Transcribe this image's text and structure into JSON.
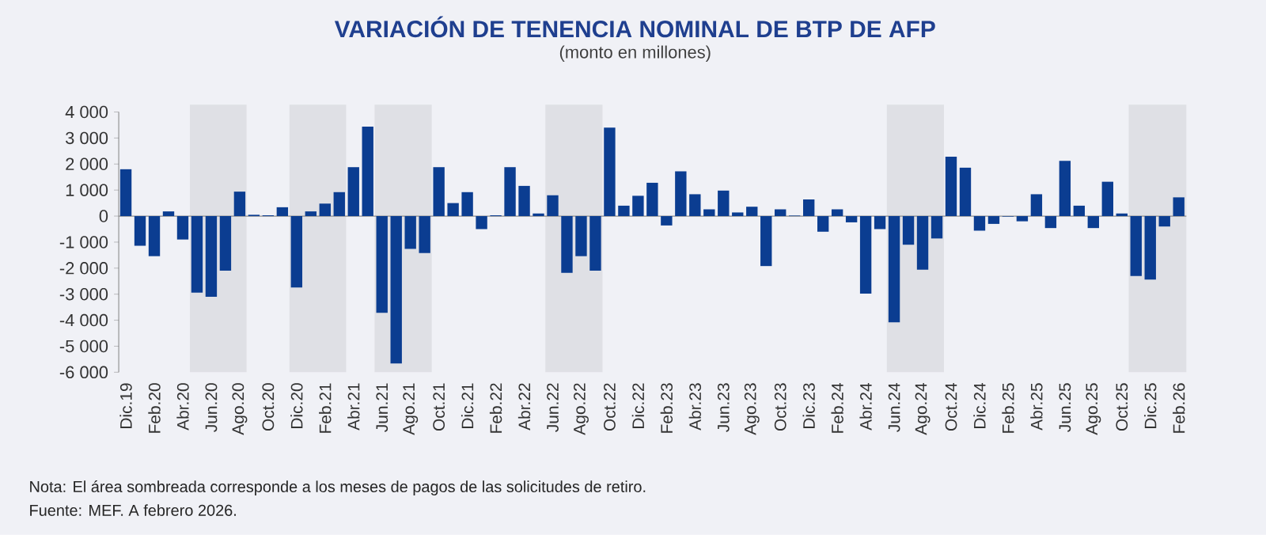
{
  "chart_data": {
    "type": "bar",
    "title": "VARIACIÓN DE TENENCIA NOMINAL DE BTP DE AFP",
    "subtitle": "(monto en millones)",
    "x": [
      "2019-12",
      "2020-01",
      "2020-02",
      "2020-03",
      "2020-04",
      "2020-05",
      "2020-06",
      "2020-07",
      "2020-08",
      "2020-09",
      "2020-10",
      "2020-11",
      "2020-12",
      "2021-01",
      "2021-02",
      "2021-03",
      "2021-04",
      "2021-05",
      "2021-06",
      "2021-07",
      "2021-08",
      "2021-09",
      "2021-10",
      "2021-11",
      "2021-12",
      "2022-01",
      "2022-02",
      "2022-03",
      "2022-04",
      "2022-05",
      "2022-06",
      "2022-07",
      "2022-08",
      "2022-09",
      "2022-10",
      "2022-11",
      "2022-12",
      "2023-01",
      "2023-02",
      "2023-03",
      "2023-04",
      "2023-05",
      "2023-06",
      "2023-07",
      "2023-08",
      "2023-09",
      "2023-10",
      "2023-11",
      "2023-12",
      "2024-01",
      "2024-02",
      "2024-03",
      "2024-04",
      "2024-05",
      "2024-06",
      "2024-07",
      "2024-08",
      "2024-09",
      "2024-10",
      "2024-11",
      "2024-12",
      "2025-01",
      "2025-02",
      "2025-03",
      "2025-04",
      "2025-05",
      "2025-06",
      "2025-07",
      "2025-08",
      "2025-09",
      "2025-10",
      "2025-11",
      "2025-12",
      "2026-01",
      "2026-02"
    ],
    "values": [
      1800,
      -1140,
      -1540,
      180,
      -900,
      -2940,
      -3100,
      -2100,
      940,
      50,
      30,
      340,
      -2740,
      180,
      480,
      920,
      1880,
      3440,
      -3720,
      -5660,
      -1260,
      -1420,
      1880,
      500,
      920,
      -500,
      30,
      1880,
      1160,
      100,
      800,
      -2180,
      -1540,
      -2100,
      3400,
      400,
      780,
      1280,
      -360,
      1720,
      840,
      260,
      980,
      140,
      360,
      -1920,
      260,
      20,
      640,
      -600,
      260,
      -240,
      -2980,
      -500,
      -4080,
      -1100,
      -2060,
      -860,
      2280,
      1860,
      -560,
      -300,
      -20,
      -200,
      840,
      -460,
      2120,
      400,
      -460,
      1320,
      100,
      -2300,
      -2440,
      -400,
      720
    ],
    "color": "#0b3d91",
    "xlim": [
      "2019-11-16",
      "2026-02-16"
    ],
    "xticks": [
      {
        "value": "2019-12",
        "label": "Dic.19"
      },
      {
        "value": "2020-02",
        "label": "Feb.20"
      },
      {
        "value": "2020-04",
        "label": "Abr.20"
      },
      {
        "value": "2020-06",
        "label": "Jun.20"
      },
      {
        "value": "2020-08",
        "label": "Ago.20"
      },
      {
        "value": "2020-10",
        "label": "Oct.20"
      },
      {
        "value": "2020-12",
        "label": "Dic.20"
      },
      {
        "value": "2021-02",
        "label": "Feb.21"
      },
      {
        "value": "2021-04",
        "label": "Abr.21"
      },
      {
        "value": "2021-06",
        "label": "Jun.21"
      },
      {
        "value": "2021-08",
        "label": "Ago.21"
      },
      {
        "value": "2021-10",
        "label": "Oct.21"
      },
      {
        "value": "2021-12",
        "label": "Dic.21"
      },
      {
        "value": "2022-02",
        "label": "Feb.22"
      },
      {
        "value": "2022-04",
        "label": "Abr.22"
      },
      {
        "value": "2022-06",
        "label": "Jun.22"
      },
      {
        "value": "2022-08",
        "label": "Ago.22"
      },
      {
        "value": "2022-10",
        "label": "Oct.22"
      },
      {
        "value": "2022-12",
        "label": "Dic.22"
      },
      {
        "value": "2023-02",
        "label": "Feb.23"
      },
      {
        "value": "2023-04",
        "label": "Abr.23"
      },
      {
        "value": "2023-06",
        "label": "Jun.23"
      },
      {
        "value": "2023-08",
        "label": "Ago.23"
      },
      {
        "value": "2023-10",
        "label": "Oct.23"
      },
      {
        "value": "2023-12",
        "label": "Dic.23"
      },
      {
        "value": "2024-02",
        "label": "Feb.24"
      },
      {
        "value": "2024-04",
        "label": "Abr.24"
      },
      {
        "value": "2024-06",
        "label": "Jun.24"
      },
      {
        "value": "2024-08",
        "label": "Ago.24"
      },
      {
        "value": "2024-10",
        "label": "Oct.24"
      },
      {
        "value": "2024-12",
        "label": "Dic.24"
      },
      {
        "value": "2025-02",
        "label": "Feb.25"
      },
      {
        "value": "2025-04",
        "label": "Abr.25"
      },
      {
        "value": "2025-06",
        "label": "Jun.25"
      },
      {
        "value": "2025-08",
        "label": "Ago.25"
      },
      {
        "value": "2025-10",
        "label": "Oct.25"
      },
      {
        "value": "2025-12",
        "label": "Dic.25"
      },
      {
        "value": "2026-02",
        "label": "Feb.26"
      }
    ],
    "ylim": [
      -6000,
      4000
    ],
    "yticks": [
      {
        "value": 4000,
        "label": "4 000"
      },
      {
        "value": 3000,
        "label": "3 000"
      },
      {
        "value": 2000,
        "label": "2 000"
      },
      {
        "value": 1000,
        "label": "1 000"
      },
      0,
      {
        "value": -1000,
        "label": "-1 000"
      },
      {
        "value": -2000,
        "label": "-2 000"
      },
      {
        "value": -3000,
        "label": "-3 000"
      },
      {
        "value": -4000,
        "label": "-4 000"
      },
      {
        "value": -5000,
        "label": "-5 000"
      },
      {
        "value": -6000,
        "label": "-6 000"
      }
    ],
    "bands": [
      {
        "axis": "x",
        "from": "2020-04-16",
        "to": "2020-08-16",
        "color": "#dfe0e5"
      },
      {
        "axis": "x",
        "from": "2020-11-16",
        "to": "2021-03-16",
        "color": "#dfe0e5"
      },
      {
        "axis": "x",
        "from": "2021-05-16",
        "to": "2021-09-16",
        "color": "#dfe0e5"
      },
      {
        "axis": "x",
        "from": "2022-05-16",
        "to": "2022-09-16",
        "color": "#dfe0e5"
      },
      {
        "axis": "x",
        "from": "2024-05-16",
        "to": "2024-09-16",
        "color": "#dfe0e5"
      },
      {
        "axis": "x",
        "from": "2025-10-16",
        "to": "2026-02-16",
        "color": "#dfe0e5"
      }
    ],
    "ref_lines": [
      {
        "axis": "y",
        "value": 0,
        "color": "#8c8c8c"
      }
    ],
    "annotations": [
      "Nota: El área sombreada corresponde a los meses de pagos de las solicitudes de retiro.",
      "Fuente: MEF. A febrero 2026."
    ]
  }
}
